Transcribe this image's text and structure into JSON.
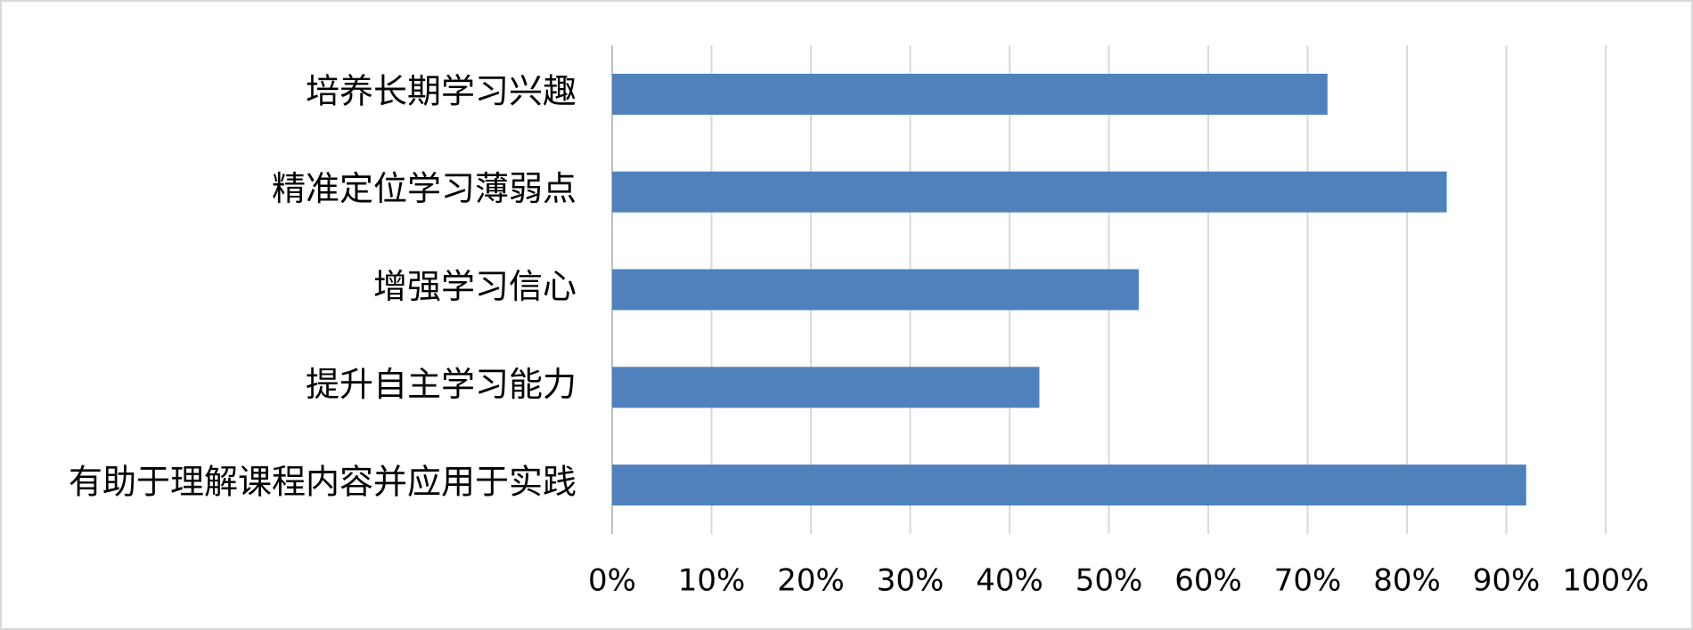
{
  "chart_data": {
    "type": "bar",
    "orientation": "horizontal",
    "categories": [
      "培养长期学习兴趣",
      "精准定位学习薄弱点",
      "增强学习信心",
      "提升自主学习能力",
      "有助于理解课程内容并应用于实践"
    ],
    "values": [
      72,
      84,
      53,
      43,
      92
    ],
    "color": "#4f81bd",
    "xlim": [
      0,
      100
    ],
    "xticks": [
      {
        "value": 0,
        "label": "0%"
      },
      {
        "value": 10,
        "label": "10%"
      },
      {
        "value": 20,
        "label": "20%"
      },
      {
        "value": 30,
        "label": "30%"
      },
      {
        "value": 40,
        "label": "40%"
      },
      {
        "value": 50,
        "label": "50%"
      },
      {
        "value": 60,
        "label": "60%"
      },
      {
        "value": 70,
        "label": "70%"
      },
      {
        "value": 80,
        "label": "80%"
      },
      {
        "value": 90,
        "label": "90%"
      },
      {
        "value": 100,
        "label": "100%"
      }
    ],
    "grid": true
  }
}
